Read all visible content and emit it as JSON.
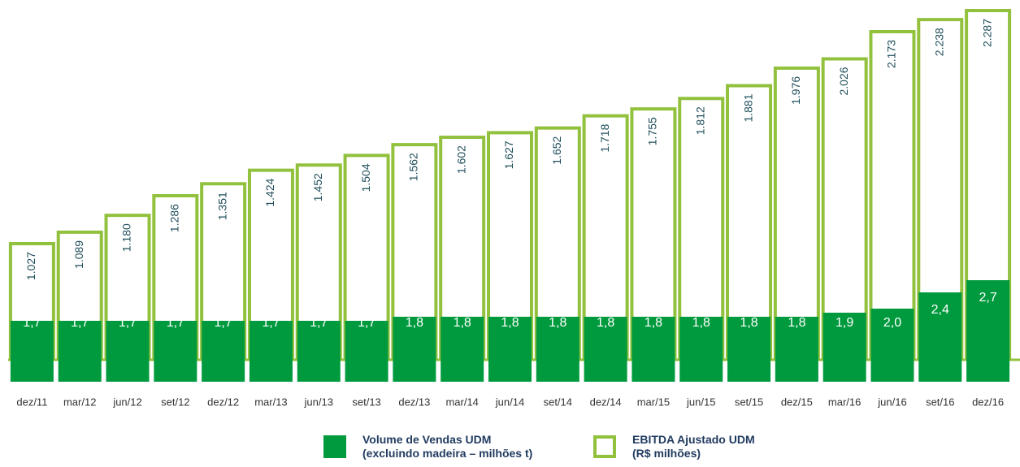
{
  "chart_data": {
    "type": "bar",
    "categories": [
      "dez/11",
      "mar/12",
      "jun/12",
      "set/12",
      "dez/12",
      "mar/13",
      "jun/13",
      "set/13",
      "dez/13",
      "mar/14",
      "jun/14",
      "set/14",
      "dez/14",
      "mar/15",
      "jun/15",
      "set/15",
      "dez/15",
      "mar/16",
      "jun/16",
      "set/16",
      "dez/16"
    ],
    "series": [
      {
        "name": "Volume de Vendas UDM\n(excluindo madeira – milhões t)",
        "color": "#009a3e",
        "values": [
          1.7,
          1.7,
          1.7,
          1.7,
          1.7,
          1.7,
          1.7,
          1.7,
          1.8,
          1.8,
          1.8,
          1.8,
          1.8,
          1.8,
          1.8,
          1.8,
          1.8,
          1.9,
          2.0,
          2.4,
          2.7
        ],
        "value_labels": [
          "1,7",
          "1,7",
          "1,7",
          "1,7",
          "1,7",
          "1,7",
          "1,7",
          "1,7",
          "1,8",
          "1,8",
          "1,8",
          "1,8",
          "1,8",
          "1,8",
          "1,8",
          "1,8",
          "1,8",
          "1,9",
          "2,0",
          "2,4",
          "2,7"
        ]
      },
      {
        "name": "EBITDA Ajustado UDM\n(R$ milhões)",
        "color": "#92c13e",
        "axis": "y2",
        "values": [
          1027,
          1089,
          1180,
          1286,
          1351,
          1424,
          1452,
          1504,
          1562,
          1602,
          1627,
          1652,
          1718,
          1755,
          1812,
          1881,
          1976,
          2026,
          2173,
          2238,
          2287
        ],
        "value_labels": [
          "1.027",
          "1.089",
          "1.180",
          "1.286",
          "1.351",
          "1.424",
          "1.452",
          "1.504",
          "1.562",
          "1.602",
          "1.627",
          "1.652",
          "1.718",
          "1.755",
          "1.812",
          "1.881",
          "1.976",
          "2.026",
          "2.173",
          "2.238",
          "2.287"
        ]
      }
    ],
    "ylim": [
      0,
      9.6
    ],
    "y2lim": [
      0,
      2344
    ]
  }
}
